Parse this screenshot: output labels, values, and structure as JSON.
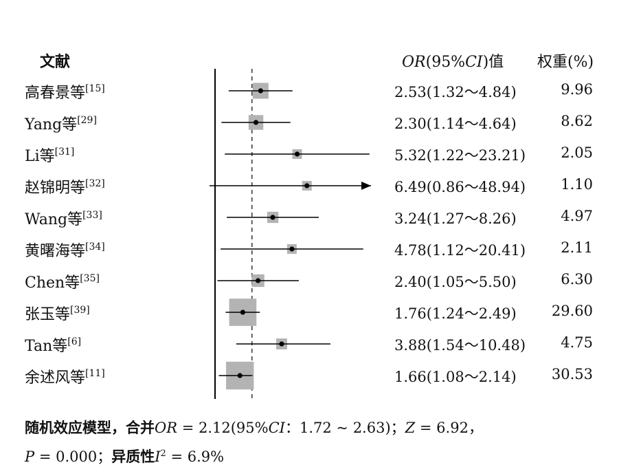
{
  "headers": {
    "study": "文献",
    "or_ci_italic": "OR",
    "or_ci_paren_open": "(95%",
    "or_ci_ci": "CI",
    "or_ci_close": ")值",
    "weight": "权重(%)"
  },
  "chart_data": {
    "type": "forest",
    "null_line": 1,
    "pooled_line": 2.12,
    "rows": [
      {
        "study": "高春景等",
        "ref": "[15]",
        "or": 2.53,
        "lo": 1.32,
        "hi": 4.84,
        "or_text": "2.53(1.32～4.84)",
        "weight": "9.96"
      },
      {
        "study": "Yang等",
        "ref": "[29]",
        "or": 2.3,
        "lo": 1.14,
        "hi": 4.64,
        "or_text": "2.30(1.14～4.64)",
        "weight": "8.62"
      },
      {
        "study": "Li等",
        "ref": "[31]",
        "or": 5.32,
        "lo": 1.22,
        "hi": 23.21,
        "or_text": "5.32(1.22～23.21)",
        "weight": "2.05"
      },
      {
        "study": "赵锦明等",
        "ref": "[32]",
        "or": 6.49,
        "lo": 0.86,
        "hi": 48.94,
        "or_text": "6.49(0.86～48.94)",
        "weight": "1.10",
        "arrow_right": true
      },
      {
        "study": "Wang等",
        "ref": "[33]",
        "or": 3.24,
        "lo": 1.27,
        "hi": 8.26,
        "or_text": "3.24(1.27～8.26)",
        "weight": "4.97"
      },
      {
        "study": "黄曙海等",
        "ref": "[34]",
        "or": 4.78,
        "lo": 1.12,
        "hi": 20.41,
        "or_text": "4.78(1.12～20.41)",
        "weight": "2.11"
      },
      {
        "study": "Chen等",
        "ref": "[35]",
        "or": 2.4,
        "lo": 1.05,
        "hi": 5.5,
        "or_text": "2.40(1.05～5.50)",
        "weight": "6.30"
      },
      {
        "study": "张玉等",
        "ref": "[39]",
        "or": 1.76,
        "lo": 1.24,
        "hi": 2.49,
        "or_text": "1.76(1.24～2.49)",
        "weight": "29.60"
      },
      {
        "study": "Tan等",
        "ref": "[6]",
        "or": 3.88,
        "lo": 1.54,
        "hi": 10.48,
        "or_text": "3.88(1.54～10.48)",
        "weight": "4.75"
      },
      {
        "study": "余述风等",
        "ref": "[11]",
        "or": 1.66,
        "lo": 1.08,
        "hi": 2.14,
        "or_text": "1.66(1.08～2.14)",
        "weight": "30.53"
      }
    ]
  },
  "summary": {
    "line1_bold": "随机效应模型，合并",
    "line1_or": "OR",
    "line1_text": " = 2.12(95%",
    "line1_ci": "CI",
    "line1_text2": "：1.72 ~ 2.63)；",
    "line1_z": "Z",
    "line1_text3": " = 6.92，",
    "line2_p": "P",
    "line2_text": " = 0.000；",
    "line2_bold": "异质性",
    "line2_i": "I",
    "line2_sup": "2",
    "line2_text2": " = 6.9%"
  }
}
